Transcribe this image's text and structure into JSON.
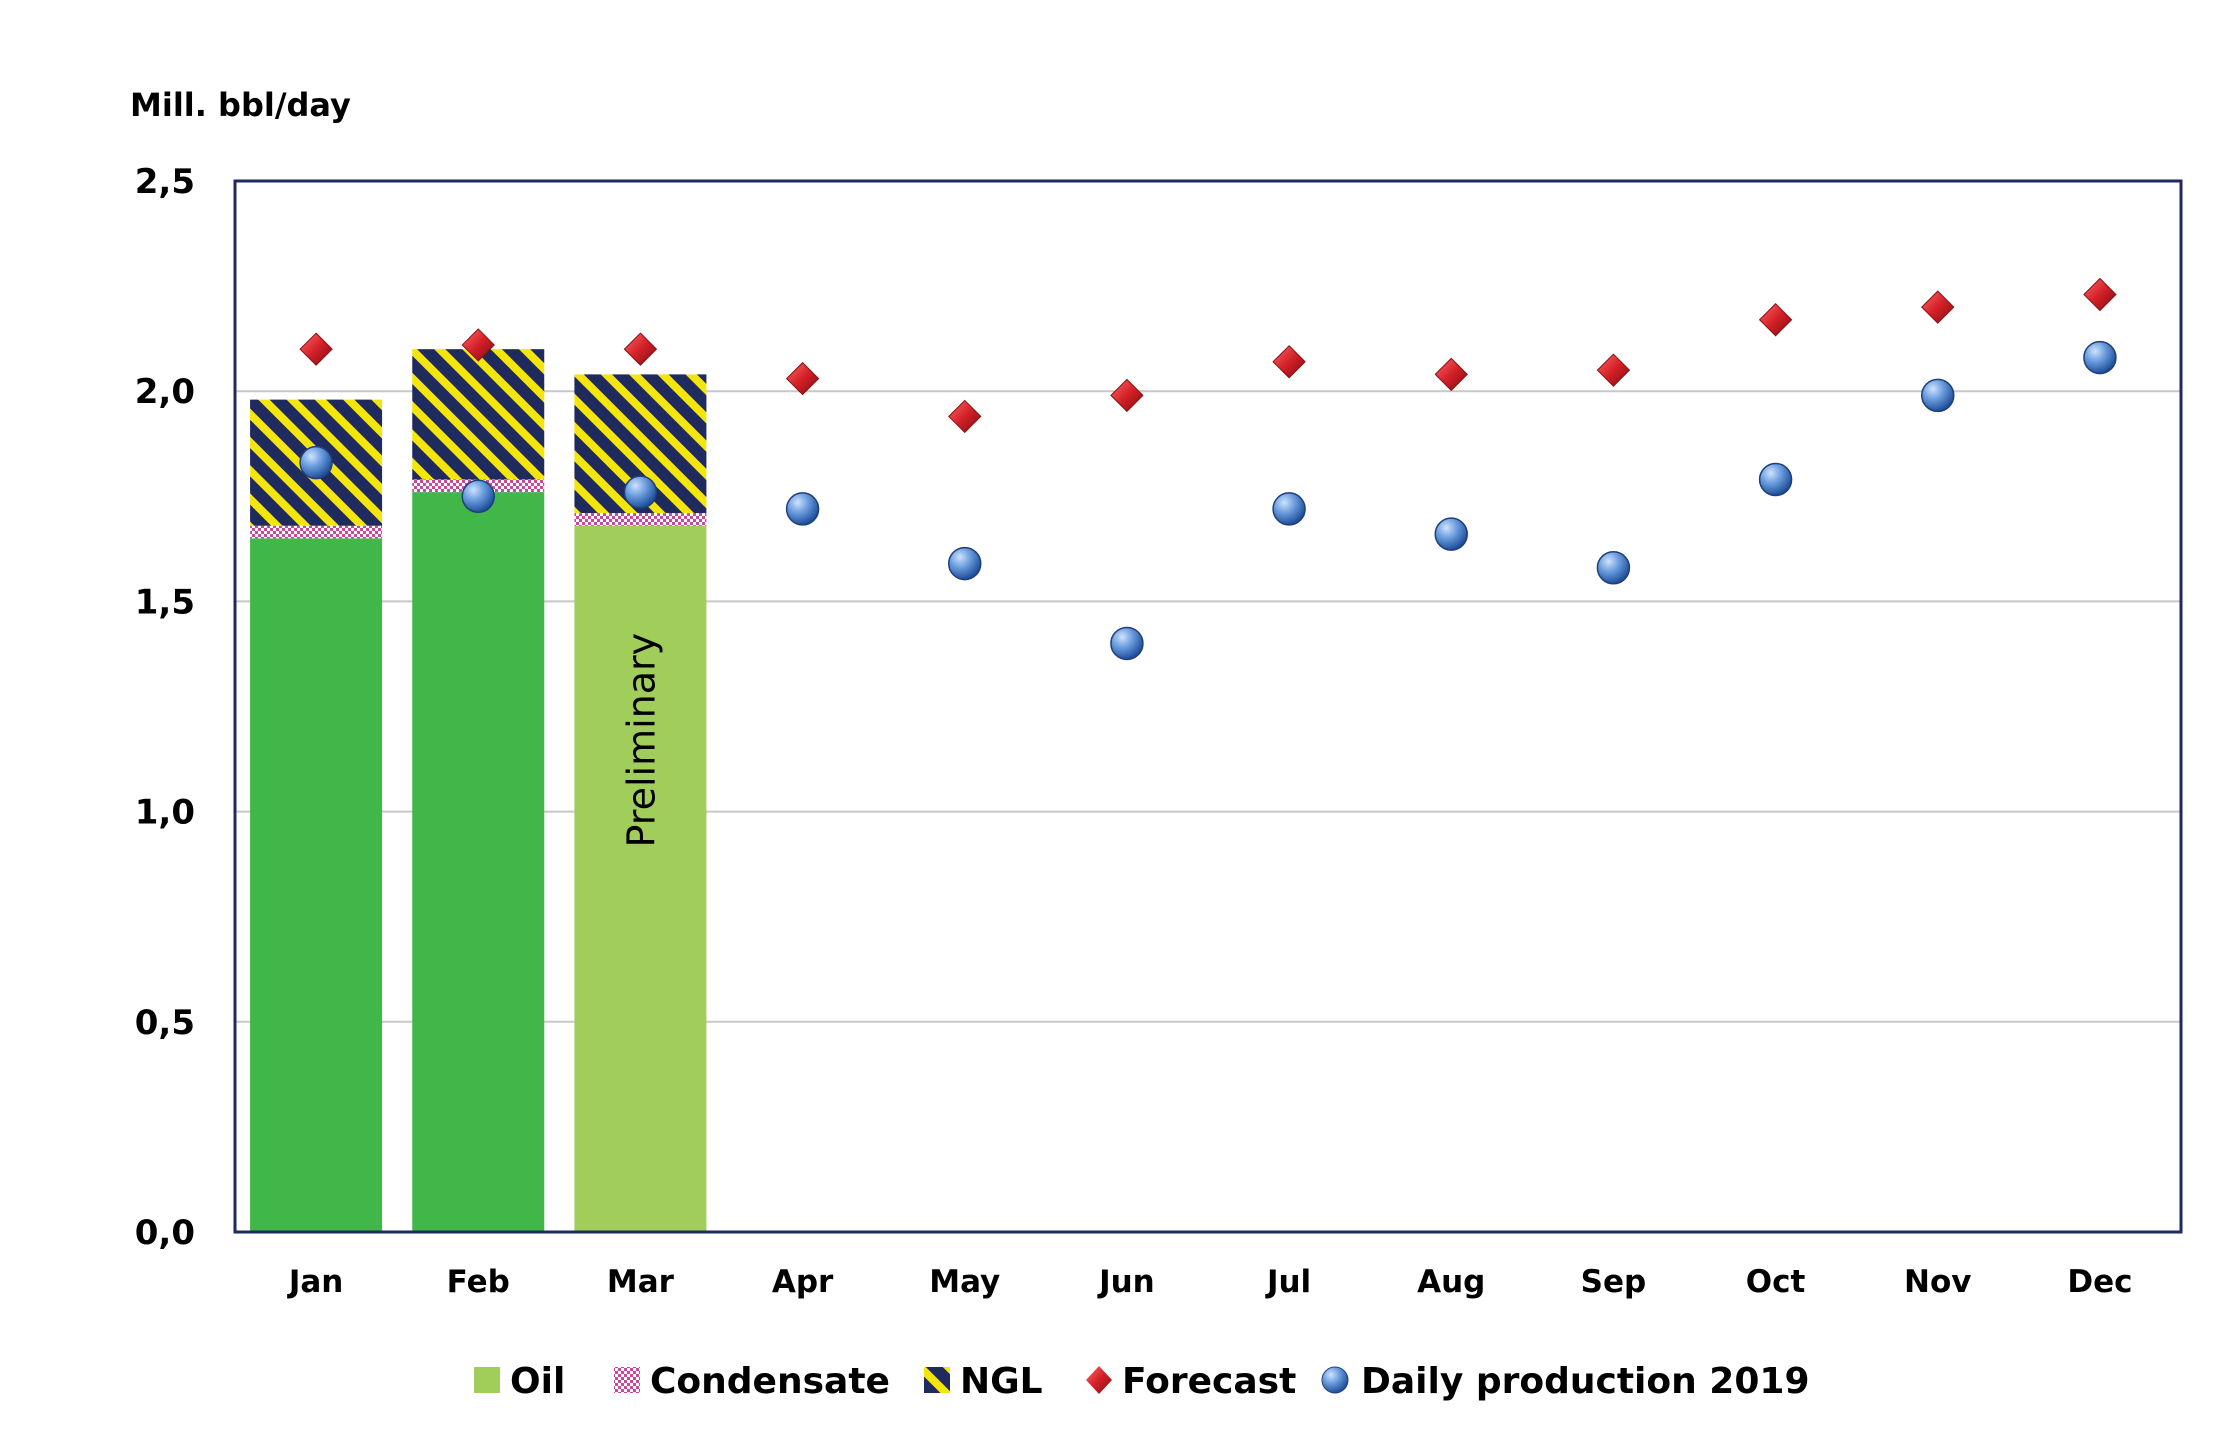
{
  "chart_data": {
    "type": "bar",
    "ylabel": "Mill. bbl/day",
    "ylim": [
      0,
      2.5
    ],
    "yticks": [
      "0,0",
      "0,5",
      "1,0",
      "1,5",
      "2,0",
      "2,5"
    ],
    "ytick_values": [
      0,
      0.5,
      1.0,
      1.5,
      2.0,
      2.5
    ],
    "categories": [
      "Jan",
      "Feb",
      "Mar",
      "Apr",
      "May",
      "Jun",
      "Jul",
      "Aug",
      "Sep",
      "Oct",
      "Nov",
      "Dec"
    ],
    "stacked_series": [
      {
        "name": "Oil",
        "values": [
          1.65,
          1.76,
          1.68,
          null,
          null,
          null,
          null,
          null,
          null,
          null,
          null,
          null
        ]
      },
      {
        "name": "Condensate",
        "values": [
          0.03,
          0.03,
          0.03,
          null,
          null,
          null,
          null,
          null,
          null,
          null,
          null,
          null
        ]
      },
      {
        "name": "NGL",
        "values": [
          0.3,
          0.31,
          0.33,
          null,
          null,
          null,
          null,
          null,
          null,
          null,
          null,
          null
        ]
      }
    ],
    "marker_series": [
      {
        "name": "Forecast",
        "marker": "diamond",
        "values": [
          2.1,
          2.11,
          2.1,
          2.03,
          1.94,
          1.99,
          2.07,
          2.04,
          2.05,
          2.17,
          2.2,
          2.23
        ]
      },
      {
        "name": "Daily production 2019",
        "marker": "circle",
        "values": [
          1.83,
          1.75,
          1.76,
          1.72,
          1.59,
          1.4,
          1.72,
          1.66,
          1.58,
          1.79,
          1.99,
          2.08
        ]
      }
    ],
    "bar_annotation": {
      "category": "Mar",
      "text": "Preliminary"
    },
    "legend": {
      "position": "bottom",
      "items": [
        {
          "label": "Oil",
          "type": "bar-solid"
        },
        {
          "label": "Condensate",
          "type": "bar-checker"
        },
        {
          "label": "NGL",
          "type": "bar-stripes"
        },
        {
          "label": "Forecast",
          "type": "diamond"
        },
        {
          "label": "Daily production 2019",
          "type": "circle"
        }
      ]
    },
    "grid": true
  },
  "colors": {
    "oil": "#41b649",
    "oil_preliminary": "#a1cd5a",
    "condensate": "#c8489c",
    "ngl_dark": "#1f2a5e",
    "ngl_light": "#f4e60c",
    "forecast": "#d32027",
    "daily": "#4a86d4",
    "axis": "#1f2a5e",
    "grid": "#c8c8c8"
  }
}
